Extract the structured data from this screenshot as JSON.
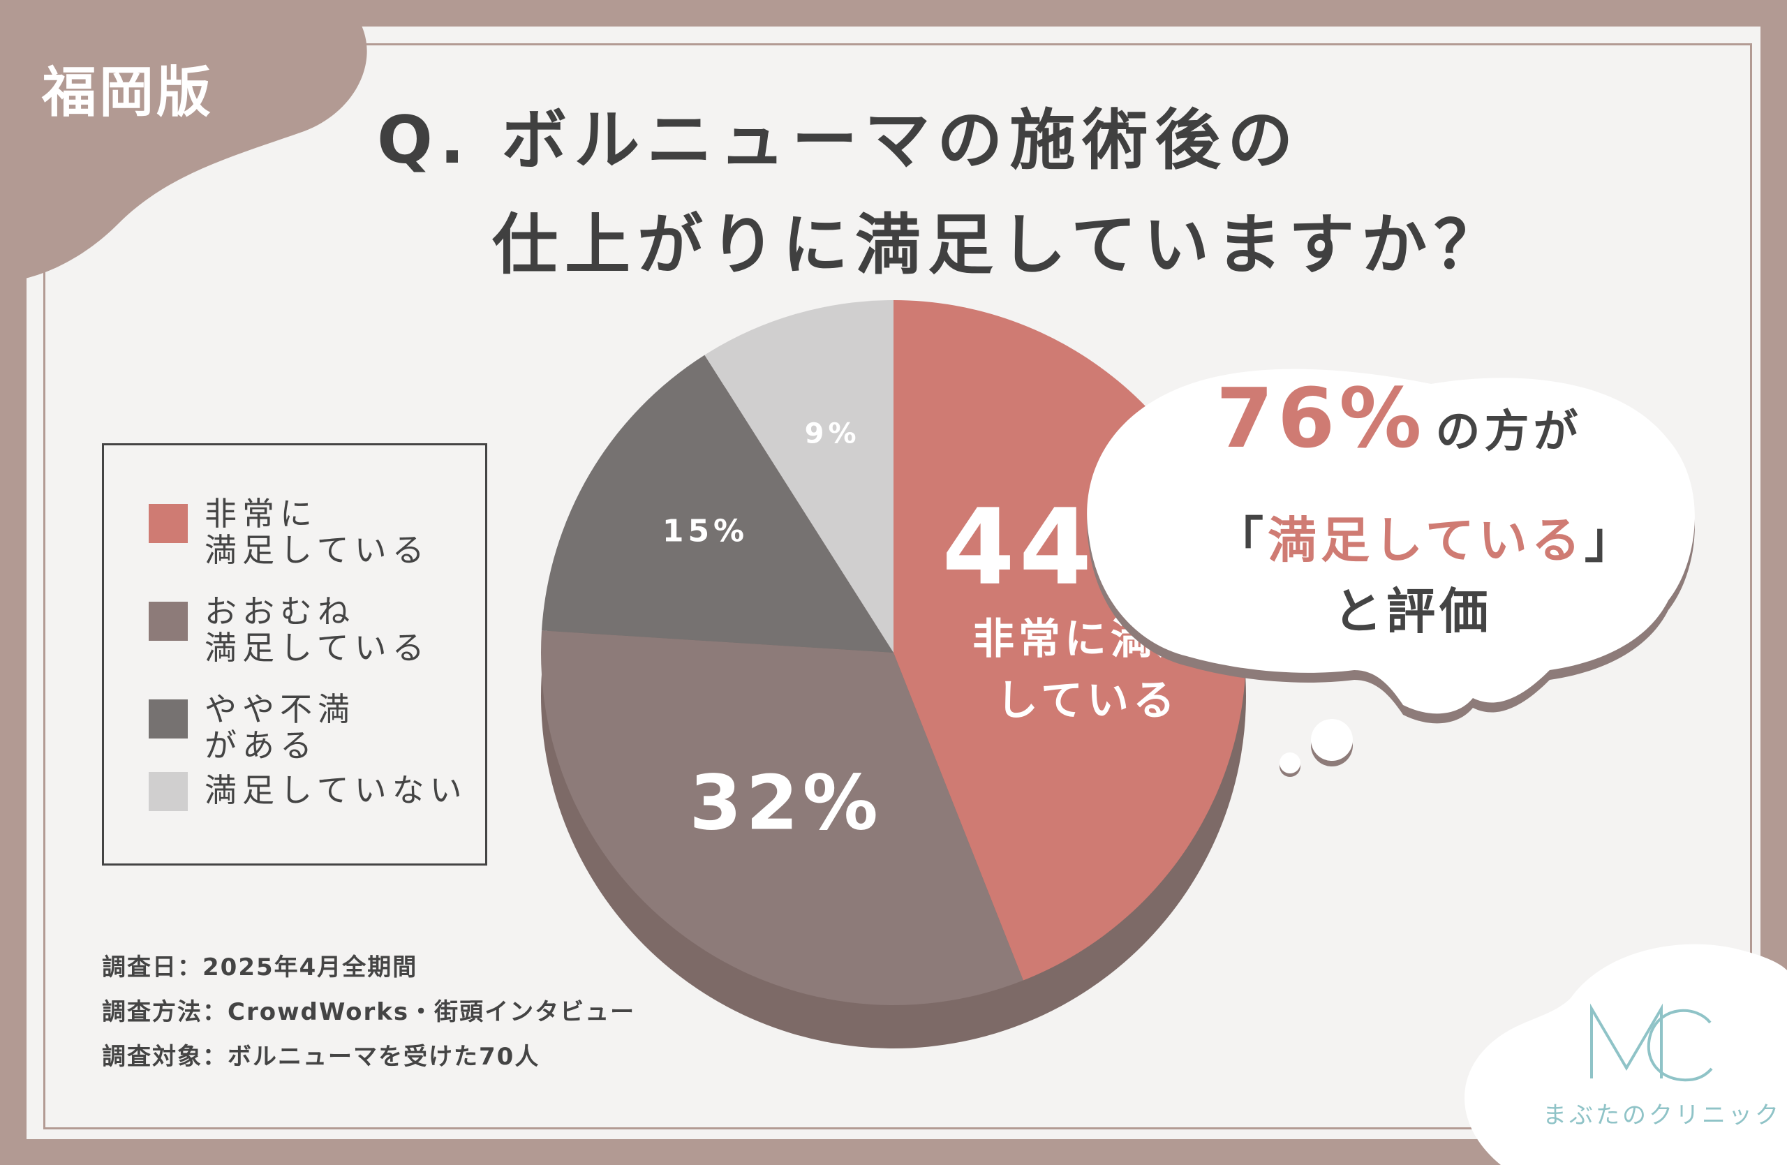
{
  "region_tag": "福岡版",
  "title": {
    "line1": "Q. ボルニューマの施術後の",
    "line2": "仕上がりに満足していますか？"
  },
  "colors": {
    "frame": "#b29a93",
    "very_satisfied": "#cf7b73",
    "mostly_satisfied": "#8d7b79",
    "somewhat_dissatisfied": "#767271",
    "not_satisfied": "#d0cfcf",
    "accent_text": "#cf7b73",
    "logo": "#8fc3c7"
  },
  "legend": [
    {
      "label": "非常に\n満足している"
    },
    {
      "label": "おおむね\n満足している"
    },
    {
      "label": "やや不満\nがある"
    },
    {
      "label": "満足していない"
    }
  ],
  "chart_data": {
    "type": "pie",
    "series": [
      {
        "label": "非常に満足している",
        "value": 44,
        "value_label": "44%",
        "detail": "非常に満足\nしている"
      },
      {
        "label": "おおむね満足している",
        "value": 32,
        "value_label": "32%"
      },
      {
        "label": "やや不満がある",
        "value": 15,
        "value_label": "15%"
      },
      {
        "label": "満足していない",
        "value": 9,
        "value_label": "9%"
      }
    ]
  },
  "callout": {
    "percent": "76%",
    "suffix": "の方が",
    "quote_open": "「",
    "quote": "満足している",
    "quote_close": "」",
    "line3": "と評価"
  },
  "footer": {
    "date": "調査日：2025年4月全期間",
    "method": "調査方法：CrowdWorks・街頭インタビュー",
    "subjects": "調査対象：ボルニューマを受けた70人"
  },
  "logo": {
    "mark": "MC",
    "name": "まぶたのクリニック"
  }
}
